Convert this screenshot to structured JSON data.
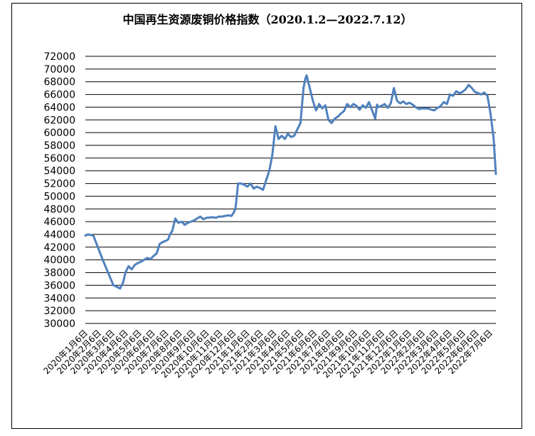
{
  "chart_data": {
    "type": "line",
    "title": "中国再生资源废铜价格指数（2020.1.2—2022.7.12）",
    "xlabel": "",
    "ylabel": "",
    "ylim": [
      30000,
      72000
    ],
    "y_ticks": [
      30000,
      32000,
      34000,
      36000,
      38000,
      40000,
      42000,
      44000,
      46000,
      48000,
      50000,
      52000,
      54000,
      56000,
      58000,
      60000,
      62000,
      64000,
      66000,
      68000,
      70000,
      72000
    ],
    "grid": true,
    "legend": "none",
    "line_color": "#4F81BD",
    "x_tick_labels": [
      "2020年1月6日",
      "2020年2月6日",
      "2020年3月6日",
      "2020年4月6日",
      "2020年5月6日",
      "2020年6月6日",
      "2020年7月6日",
      "2020年8月6日",
      "2020年9月6日",
      "2020年10月6日",
      "2020年11月6日",
      "2020年12月6日",
      "2021年1月6日",
      "2021年2月6日",
      "2021年3月6日",
      "2021年4月6日",
      "2021年5月6日",
      "2021年6月6日",
      "2021年7月6日",
      "2021年8月6日",
      "2021年9月6日",
      "2021年10月6日",
      "2021年11月6日",
      "2021年12月6日",
      "2022年1月6日",
      "2022年2月6日",
      "2022年3月6日",
      "2022年4月6日",
      "2022年5月6日",
      "2022年6月6日",
      "2022年7月6日"
    ],
    "series": [
      {
        "x": [
          "2020-01-02",
          "2020-01-08",
          "2020-01-20",
          "2020-02-10",
          "2020-03-05",
          "2020-03-20",
          "2020-03-27",
          "2020-04-01",
          "2020-04-08",
          "2020-04-15",
          "2020-04-22",
          "2020-04-29",
          "2020-05-06",
          "2020-05-13",
          "2020-05-20",
          "2020-05-27",
          "2020-06-03",
          "2020-06-10",
          "2020-06-17",
          "2020-06-24",
          "2020-07-01",
          "2020-07-06",
          "2020-07-10",
          "2020-07-15",
          "2020-07-22",
          "2020-07-29",
          "2020-08-05",
          "2020-08-12",
          "2020-08-19",
          "2020-08-26",
          "2020-09-02",
          "2020-09-09",
          "2020-09-16",
          "2020-09-23",
          "2020-09-30",
          "2020-10-14",
          "2020-10-21",
          "2020-10-28",
          "2020-11-04",
          "2020-11-11",
          "2020-11-18",
          "2020-11-25",
          "2020-11-30",
          "2020-12-04",
          "2020-12-10",
          "2020-12-17",
          "2020-12-24",
          "2020-12-31",
          "2021-01-07",
          "2021-01-14",
          "2021-01-21",
          "2021-01-28",
          "2021-02-04",
          "2021-02-18",
          "2021-02-25",
          "2021-03-04",
          "2021-03-11",
          "2021-03-18",
          "2021-03-25",
          "2021-04-01",
          "2021-04-08",
          "2021-04-15",
          "2021-04-22",
          "2021-04-29",
          "2021-05-06",
          "2021-05-10",
          "2021-05-13",
          "2021-05-20",
          "2021-05-27",
          "2021-06-03",
          "2021-06-10",
          "2021-06-17",
          "2021-06-24",
          "2021-07-01",
          "2021-07-08",
          "2021-07-15",
          "2021-07-22",
          "2021-07-29",
          "2021-08-05",
          "2021-08-12",
          "2021-08-19",
          "2021-08-26",
          "2021-09-02",
          "2021-09-09",
          "2021-09-16",
          "2021-09-23",
          "2021-09-30",
          "2021-10-14",
          "2021-10-18",
          "2021-10-21",
          "2021-10-28",
          "2021-11-04",
          "2021-11-11",
          "2021-11-18",
          "2021-11-25",
          "2021-12-02",
          "2021-12-09",
          "2021-12-16",
          "2021-12-23",
          "2021-12-30",
          "2022-01-06",
          "2022-01-13",
          "2022-01-20",
          "2022-01-27",
          "2022-02-10",
          "2022-02-17",
          "2022-02-24",
          "2022-03-03",
          "2022-03-07",
          "2022-03-10",
          "2022-03-17",
          "2022-03-24",
          "2022-03-31",
          "2022-04-07",
          "2022-04-14",
          "2022-04-21",
          "2022-04-28",
          "2022-05-05",
          "2022-05-12",
          "2022-05-19",
          "2022-05-26",
          "2022-06-02",
          "2022-06-09",
          "2022-06-16",
          "2022-06-23",
          "2022-06-30",
          "2022-07-07",
          "2022-07-12"
        ],
        "values": [
          43800,
          44000,
          43800,
          40000,
          36000,
          35500,
          36500,
          38000,
          39000,
          38500,
          39200,
          39500,
          39700,
          40000,
          40300,
          40100,
          40600,
          41000,
          42500,
          42800,
          43000,
          43200,
          44000,
          44500,
          46500,
          45800,
          46000,
          45500,
          45800,
          46000,
          46200,
          46500,
          46800,
          46400,
          46600,
          46700,
          46600,
          46800,
          46800,
          46900,
          47000,
          46900,
          47400,
          48000,
          52000,
          52000,
          51800,
          51500,
          52000,
          51200,
          51500,
          51300,
          51000,
          54000,
          56500,
          61000,
          59000,
          59500,
          59000,
          59800,
          59300,
          59500,
          60500,
          61500,
          67000,
          68500,
          69000,
          67000,
          65000,
          63500,
          64500,
          63800,
          64300,
          62000,
          61500,
          62200,
          62500,
          63000,
          63400,
          64500,
          64000,
          64500,
          64200,
          63600,
          64300,
          63900,
          64800,
          62200,
          64400,
          64000,
          64200,
          64500,
          63900,
          64600,
          67000,
          65000,
          64600,
          64900,
          64500,
          64700,
          64400,
          64000,
          63700,
          63800,
          63800,
          63600,
          63500,
          63900,
          64000,
          64200,
          64800,
          64500,
          66000,
          65800,
          66500,
          66200,
          66400,
          66800,
          67500,
          67000,
          66400,
          66200,
          66000,
          66300,
          65800,
          63000,
          59000,
          53500
        ]
      }
    ]
  }
}
